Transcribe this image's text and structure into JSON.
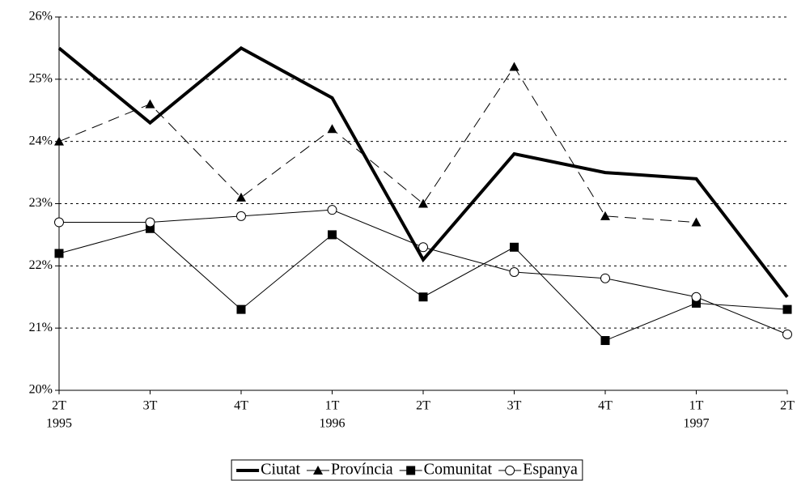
{
  "chart_data": {
    "type": "line",
    "categories": [
      "2T",
      "3T",
      "4T",
      "1T",
      "2T",
      "3T",
      "4T",
      "1T",
      "2T"
    ],
    "category_years": [
      "1995",
      null,
      null,
      "1996",
      null,
      null,
      null,
      "1997",
      null
    ],
    "ylim": [
      20,
      26
    ],
    "yticks": [
      {
        "value": 20,
        "label": "20%"
      },
      {
        "value": 21,
        "label": "21%"
      },
      {
        "value": 22,
        "label": "22%"
      },
      {
        "value": 23,
        "label": "23%"
      },
      {
        "value": 24,
        "label": "24%"
      },
      {
        "value": 25,
        "label": "25%"
      },
      {
        "value": 26,
        "label": "26%"
      }
    ],
    "grid": true,
    "legend": "bottom",
    "series": [
      {
        "name": "Ciutat",
        "color": "#000000",
        "line_style": "thick",
        "marker": "none",
        "values": [
          25.5,
          24.3,
          25.5,
          24.7,
          22.1,
          23.8,
          23.5,
          23.4,
          21.5
        ]
      },
      {
        "name": "Província",
        "color": "#000000",
        "line_style": "dashed",
        "marker": "triangle",
        "values": [
          24.0,
          24.6,
          23.1,
          24.2,
          23.0,
          25.2,
          22.8,
          22.7,
          null
        ]
      },
      {
        "name": "Comunitat",
        "color": "#000000",
        "line_style": "thin",
        "marker": "square",
        "values": [
          22.2,
          22.6,
          21.3,
          22.5,
          21.5,
          22.3,
          20.8,
          21.4,
          21.3
        ]
      },
      {
        "name": "Espanya",
        "color": "#000000",
        "line_style": "thin",
        "marker": "circle",
        "values": [
          22.7,
          22.7,
          22.8,
          22.9,
          22.3,
          21.9,
          21.8,
          21.5,
          20.9
        ]
      }
    ]
  }
}
